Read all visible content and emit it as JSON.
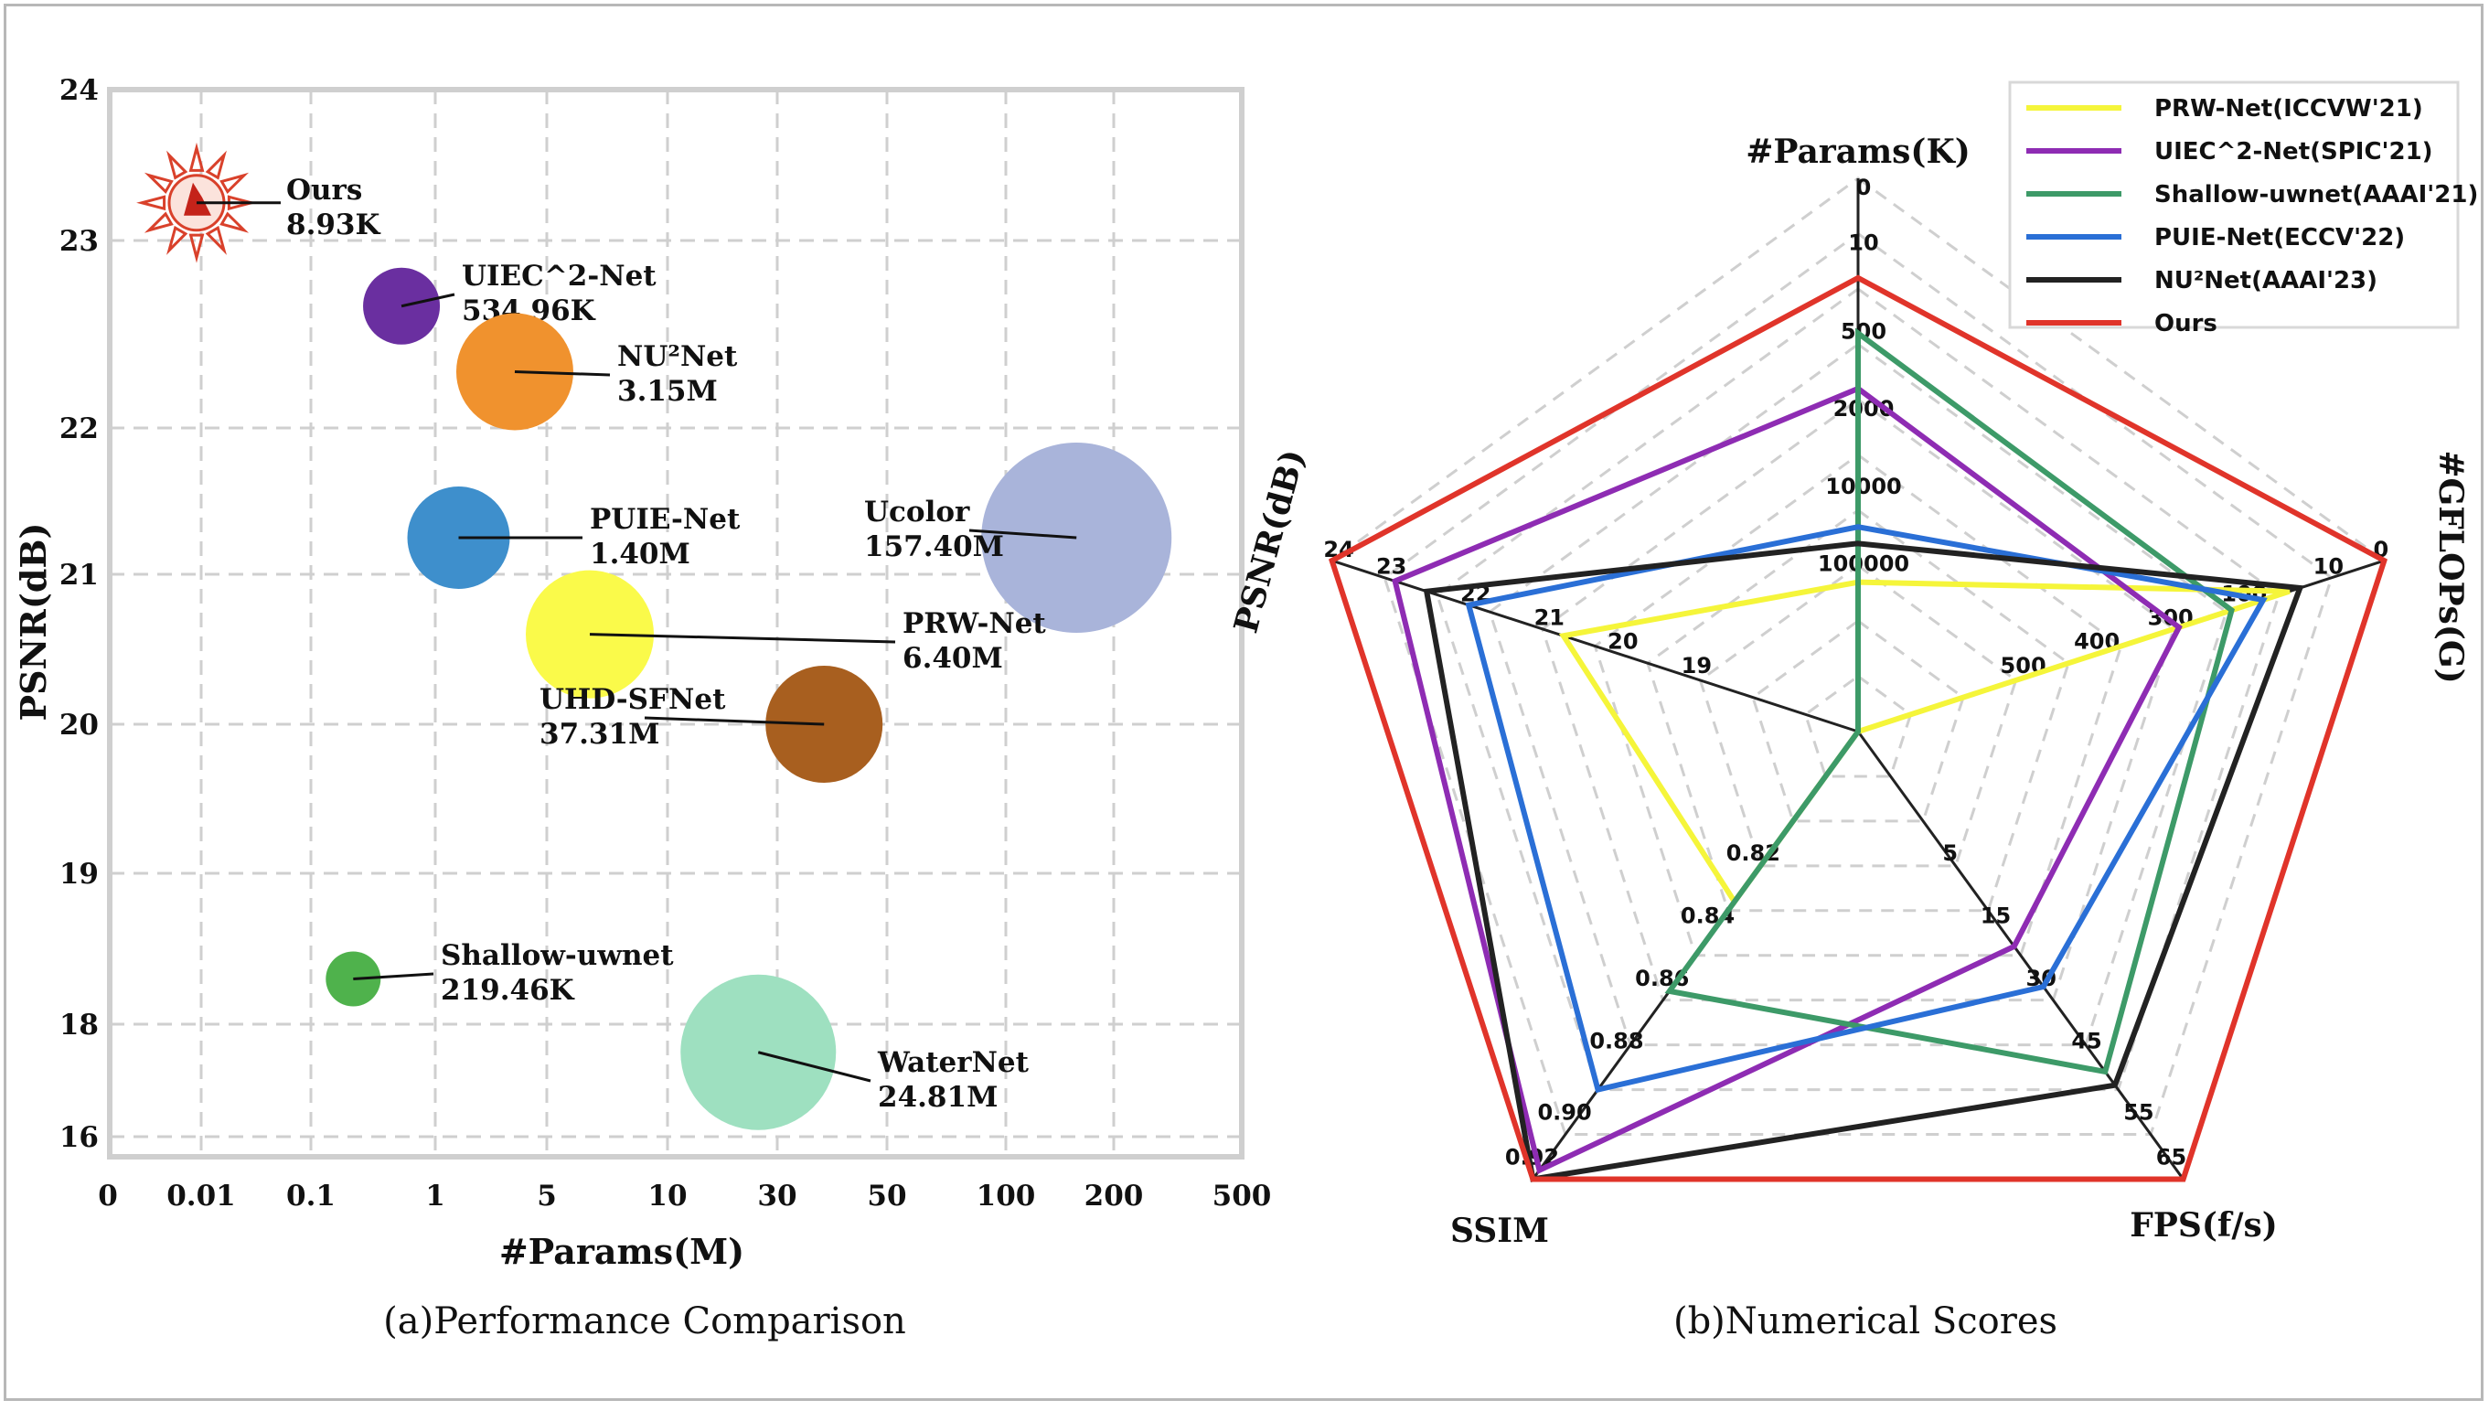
{
  "chart_data": [
    {
      "type": "scatter",
      "subtype": "bubble",
      "caption": "(a)Performance Comparison",
      "xlabel": "#Params(M)",
      "ylabel": "PSNR(dB)",
      "x_ticks": [
        "0",
        "0.01",
        "0.1",
        "1",
        "5",
        "10",
        "30",
        "50",
        "100",
        "200",
        "500"
      ],
      "y_ticks": [
        "16",
        "18",
        "19",
        "20",
        "21",
        "22",
        "23",
        "24"
      ],
      "grid": true,
      "points": [
        {
          "name": "Ours",
          "params_label": "8.93K",
          "params_m": 0.00893,
          "psnr": 23.25,
          "color": "#d9412b",
          "icon": "sun-logo-icon"
        },
        {
          "name": "UIEC^2-Net",
          "params_label": "534.96K",
          "params_m": 0.535,
          "psnr": 22.65,
          "color": "#6a2fa0"
        },
        {
          "name": "NU²Net",
          "params_label": "3.15M",
          "params_m": 3.15,
          "psnr": 22.3,
          "color": "#f0922e"
        },
        {
          "name": "PUIE-Net",
          "params_label": "1.40M",
          "params_m": 1.4,
          "psnr": 21.25,
          "color": "#3e8fcc"
        },
        {
          "name": "Ucolor",
          "params_label": "157.40M",
          "params_m": 157.4,
          "psnr": 21.25,
          "color": "#a9b4da"
        },
        {
          "name": "PRW-Net",
          "params_label": "6.40M",
          "params_m": 6.4,
          "psnr": 20.6,
          "color": "#fafa4a"
        },
        {
          "name": "UHD-SFNet",
          "params_label": "37.31M",
          "params_m": 37.31,
          "psnr": 20.0,
          "color": "#a85f1f"
        },
        {
          "name": "Shallow-uwnet",
          "params_label": "219.46K",
          "params_m": 0.219,
          "psnr": 18.3,
          "color": "#4fb24c"
        },
        {
          "name": "WaterNet",
          "params_label": "24.81M",
          "params_m": 24.81,
          "psnr": 17.5,
          "color": "#9ee0c0"
        }
      ]
    },
    {
      "type": "radar",
      "caption": "(b)Numerical Scores",
      "axes": [
        {
          "name": "#Params(K)",
          "ticks": [
            "0",
            "10",
            "500",
            "2000",
            "10000",
            "100000"
          ]
        },
        {
          "name": "#GFLOPs(G)",
          "ticks": [
            "0",
            "10",
            "100",
            "300",
            "400",
            "500"
          ]
        },
        {
          "name": "FPS(f/s)",
          "ticks": [
            "65",
            "55",
            "45",
            "30",
            "15",
            "5"
          ]
        },
        {
          "name": "SSIM",
          "ticks": [
            "0.92",
            "0.90",
            "0.88",
            "0.86",
            "0.84",
            "0.82"
          ]
        },
        {
          "name": "PSNR(dB)",
          "ticks": [
            "24",
            "23",
            "22",
            "21",
            "20",
            "19"
          ]
        }
      ],
      "series": [
        {
          "name": "PRW-Net(ICCVW'21)",
          "color": "#f5f53a",
          "values": [
            0.27,
            0.82,
            0.0,
            0.38,
            0.56
          ]
        },
        {
          "name": "UIEC^2-Net(SPIC'21)",
          "color": "#8e2cb3",
          "values": [
            0.62,
            0.61,
            0.48,
            0.98,
            0.88
          ]
        },
        {
          "name": "Shallow-uwnet(AAAI'21)",
          "color": "#3d9a68",
          "values": [
            0.72,
            0.71,
            0.76,
            0.58,
            0.0
          ]
        },
        {
          "name": "PUIE-Net(ECCV'22)",
          "color": "#2a6fd6",
          "values": [
            0.37,
            0.77,
            0.57,
            0.8,
            0.74
          ]
        },
        {
          "name": "NU²Net(AAAI'23)",
          "color": "#222222",
          "values": [
            0.34,
            0.84,
            0.79,
            1.0,
            0.82
          ]
        },
        {
          "name": "Ours",
          "color": "#e0342a",
          "values": [
            0.82,
            1.0,
            1.0,
            1.0,
            1.0
          ]
        }
      ]
    }
  ]
}
